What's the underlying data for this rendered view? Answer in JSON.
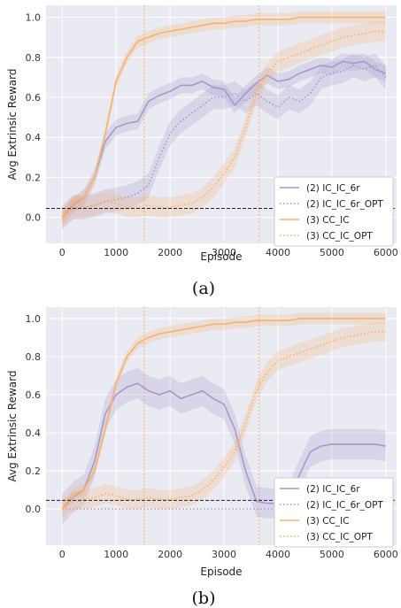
{
  "chart_data": [
    {
      "type": "line",
      "caption": "(a)",
      "xlabel": "Episode",
      "ylabel": "Avg Extrinsic Reward",
      "xlim": [
        -300,
        6200
      ],
      "ylim": [
        -0.13,
        1.06
      ],
      "xticks": [
        "0",
        "1000",
        "2000",
        "3000",
        "4000",
        "5000",
        "6000"
      ],
      "yticks": [
        "0.0",
        "0.2",
        "0.4",
        "0.6",
        "0.8",
        "1.0"
      ],
      "grid": true,
      "legend_position": "lower-right",
      "reference_line": {
        "y": 0.045,
        "style": "dashed",
        "color": "#222222"
      },
      "colors": {
        "purple": "#a898cc",
        "orange": "#f7b26e"
      },
      "series": [
        {
          "name": "(2) IC_IC_6r",
          "style": "solid",
          "color": "#a898cc",
          "band": 0.04,
          "x": [
            0,
            200,
            400,
            600,
            800,
            1000,
            1200,
            1400,
            1600,
            1800,
            2000,
            2200,
            2400,
            2600,
            2800,
            3000,
            3200,
            3400,
            3600,
            3800,
            4000,
            4200,
            4400,
            4600,
            4800,
            5000,
            5200,
            5400,
            5600,
            5800,
            6000
          ],
          "values": [
            0.0,
            0.06,
            0.1,
            0.2,
            0.38,
            0.45,
            0.47,
            0.48,
            0.58,
            0.61,
            0.63,
            0.66,
            0.66,
            0.68,
            0.65,
            0.64,
            0.56,
            0.62,
            0.67,
            0.71,
            0.68,
            0.69,
            0.72,
            0.74,
            0.76,
            0.75,
            0.78,
            0.77,
            0.78,
            0.74,
            0.72
          ]
        },
        {
          "name": "(2) IC_IC_6r_OPT",
          "style": "dotted",
          "color": "#a898cc",
          "band": 0.06,
          "x": [
            0,
            200,
            400,
            600,
            800,
            1000,
            1200,
            1400,
            1600,
            1800,
            2000,
            2200,
            2400,
            2600,
            2800,
            3000,
            3200,
            3400,
            3600,
            3800,
            4000,
            4200,
            4400,
            4600,
            4800,
            5000,
            5200,
            5400,
            5600,
            5800,
            6000
          ],
          "values": [
            0.0,
            0.05,
            0.05,
            0.06,
            0.08,
            0.09,
            0.1,
            0.12,
            0.16,
            0.3,
            0.42,
            0.48,
            0.52,
            0.56,
            0.6,
            0.6,
            0.62,
            0.58,
            0.62,
            0.58,
            0.55,
            0.6,
            0.58,
            0.62,
            0.7,
            0.72,
            0.73,
            0.76,
            0.74,
            0.76,
            0.7
          ]
        },
        {
          "name": "(3) CC_IC",
          "style": "solid",
          "color": "#f7b26e",
          "band": 0.03,
          "x": [
            0,
            200,
            400,
            600,
            800,
            1000,
            1200,
            1400,
            1600,
            1800,
            2000,
            2200,
            2400,
            2600,
            2800,
            3000,
            3200,
            3400,
            3600,
            3800,
            4000,
            4200,
            4400,
            4600,
            4800,
            5000,
            5200,
            5400,
            5600,
            5800,
            6000
          ],
          "values": [
            0.0,
            0.08,
            0.1,
            0.2,
            0.42,
            0.68,
            0.8,
            0.88,
            0.9,
            0.92,
            0.93,
            0.94,
            0.95,
            0.96,
            0.97,
            0.97,
            0.98,
            0.98,
            0.99,
            0.99,
            0.99,
            0.99,
            1.0,
            1.0,
            1.0,
            1.0,
            1.0,
            1.0,
            1.0,
            1.0,
            1.0
          ]
        },
        {
          "name": "(3) CC_IC_OPT",
          "style": "dotted",
          "color": "#f7b26e",
          "band": 0.05,
          "x": [
            0,
            200,
            400,
            600,
            800,
            1000,
            1200,
            1400,
            1600,
            1800,
            2000,
            2200,
            2400,
            2600,
            2800,
            3000,
            3200,
            3400,
            3600,
            3800,
            4000,
            4200,
            4400,
            4600,
            4800,
            5000,
            5200,
            5400,
            5600,
            5800,
            6000
          ],
          "values": [
            0.0,
            0.04,
            0.05,
            0.06,
            0.08,
            0.07,
            0.05,
            0.05,
            0.06,
            0.05,
            0.05,
            0.06,
            0.07,
            0.1,
            0.15,
            0.22,
            0.3,
            0.45,
            0.62,
            0.72,
            0.78,
            0.8,
            0.82,
            0.84,
            0.86,
            0.88,
            0.9,
            0.91,
            0.92,
            0.93,
            0.93
          ]
        }
      ],
      "vlines": [
        {
          "x": 1520,
          "style": "dotted",
          "color": "#f7b26e"
        },
        {
          "x": 3650,
          "style": "dotted",
          "color": "#f7b26e"
        }
      ]
    },
    {
      "type": "line",
      "caption": "(b)",
      "xlabel": "Episode",
      "ylabel": "Avg Extrinsic Reward",
      "xlim": [
        -300,
        6200
      ],
      "ylim": [
        -0.19,
        1.06
      ],
      "xticks": [
        "0",
        "1000",
        "2000",
        "3000",
        "4000",
        "5000",
        "6000"
      ],
      "yticks": [
        "0.0",
        "0.2",
        "0.4",
        "0.6",
        "0.8",
        "1.0"
      ],
      "grid": true,
      "legend_position": "lower-right",
      "reference_line": {
        "y": 0.045,
        "style": "dashed",
        "color": "#222222"
      },
      "colors": {
        "purple": "#a898cc",
        "orange": "#f7b26e"
      },
      "series": [
        {
          "name": "(2) IC_IC_6r",
          "style": "solid",
          "color": "#a898cc",
          "band": 0.08,
          "x": [
            0,
            200,
            400,
            600,
            800,
            1000,
            1200,
            1400,
            1600,
            1800,
            2000,
            2200,
            2400,
            2600,
            2800,
            3000,
            3200,
            3400,
            3600,
            3800,
            4000,
            4200,
            4400,
            4600,
            4800,
            5000,
            5200,
            5400,
            5600,
            5800,
            6000
          ],
          "values": [
            0.0,
            0.06,
            0.1,
            0.25,
            0.5,
            0.6,
            0.64,
            0.66,
            0.62,
            0.6,
            0.62,
            0.58,
            0.6,
            0.62,
            0.58,
            0.55,
            0.42,
            0.2,
            0.04,
            0.03,
            0.03,
            0.05,
            0.18,
            0.3,
            0.33,
            0.34,
            0.34,
            0.34,
            0.34,
            0.34,
            0.33
          ]
        },
        {
          "name": "(2) IC_IC_6r_OPT",
          "style": "dotted",
          "color": "#a898cc",
          "band": 0.0,
          "x": [
            0,
            1000,
            2000,
            3000,
            4000,
            5000,
            6000
          ],
          "values": [
            0.0,
            0.0,
            0.0,
            0.0,
            0.0,
            0.0,
            0.0
          ]
        },
        {
          "name": "(3) CC_IC",
          "style": "solid",
          "color": "#f7b26e",
          "band": 0.03,
          "x": [
            0,
            200,
            400,
            600,
            800,
            1000,
            1200,
            1400,
            1600,
            1800,
            2000,
            2200,
            2400,
            2600,
            2800,
            3000,
            3200,
            3400,
            3600,
            3800,
            4000,
            4200,
            4400,
            4600,
            4800,
            5000,
            5200,
            5400,
            5600,
            5800,
            6000
          ],
          "values": [
            0.0,
            0.08,
            0.1,
            0.2,
            0.42,
            0.66,
            0.8,
            0.87,
            0.9,
            0.92,
            0.93,
            0.94,
            0.95,
            0.96,
            0.97,
            0.97,
            0.98,
            0.98,
            0.99,
            0.99,
            0.99,
            0.99,
            1.0,
            1.0,
            1.0,
            1.0,
            1.0,
            1.0,
            1.0,
            1.0,
            1.0
          ]
        },
        {
          "name": "(3) CC_IC_OPT",
          "style": "dotted",
          "color": "#f7b26e",
          "band": 0.05,
          "x": [
            0,
            200,
            400,
            600,
            800,
            1000,
            1200,
            1400,
            1600,
            1800,
            2000,
            2200,
            2400,
            2600,
            2800,
            3000,
            3200,
            3400,
            3600,
            3800,
            4000,
            4200,
            4400,
            4600,
            4800,
            5000,
            5200,
            5400,
            5600,
            5800,
            6000
          ],
          "values": [
            0.0,
            0.04,
            0.05,
            0.06,
            0.08,
            0.07,
            0.05,
            0.05,
            0.06,
            0.05,
            0.05,
            0.06,
            0.07,
            0.1,
            0.15,
            0.22,
            0.3,
            0.45,
            0.62,
            0.72,
            0.78,
            0.8,
            0.82,
            0.84,
            0.86,
            0.88,
            0.9,
            0.91,
            0.92,
            0.93,
            0.93
          ]
        }
      ],
      "vlines": [
        {
          "x": 1520,
          "style": "dotted",
          "color": "#f7b26e"
        },
        {
          "x": 3650,
          "style": "dotted",
          "color": "#f7b26e"
        }
      ]
    }
  ]
}
